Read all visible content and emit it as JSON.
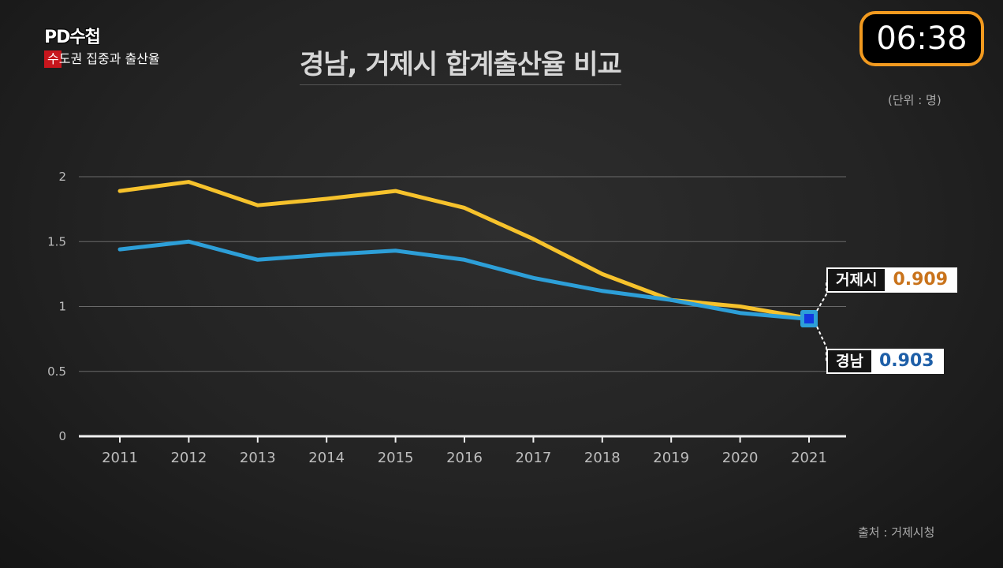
{
  "brand": {
    "logo": "PD수첩",
    "subtitle": "수도권 집중과 출산율"
  },
  "timer": "06:38",
  "title": "경남, 거제시 합계출산율 비교",
  "unit_note": "(단위 : 명)",
  "source_note": "출처 : 거제시청",
  "colors": {
    "geoje": "#f6c22c",
    "gyeongnam": "#2d9fd8",
    "timer_border": "#f29a1f",
    "marker": "#1238e0"
  },
  "callouts": [
    {
      "name": "거제시",
      "value": "0.909"
    },
    {
      "name": "경남",
      "value": "0.903"
    }
  ],
  "chart_data": {
    "type": "line",
    "title": "경남, 거제시 합계출산율 비교",
    "xlabel": "",
    "ylabel": "",
    "categories": [
      "2011",
      "2012",
      "2013",
      "2014",
      "2015",
      "2016",
      "2017",
      "2018",
      "2019",
      "2020",
      "2021"
    ],
    "ylim": [
      0,
      2
    ],
    "yticks": [
      "0",
      "0.5",
      "1",
      "1.5",
      "2"
    ],
    "grid": true,
    "series": [
      {
        "name": "거제시",
        "color": "#f6c22c",
        "values": [
          1.89,
          1.96,
          1.78,
          1.83,
          1.89,
          1.76,
          1.52,
          1.25,
          1.05,
          1.0,
          0.909
        ]
      },
      {
        "name": "경남",
        "color": "#2d9fd8",
        "values": [
          1.44,
          1.5,
          1.36,
          1.4,
          1.43,
          1.36,
          1.22,
          1.12,
          1.05,
          0.95,
          0.903
        ]
      }
    ]
  }
}
